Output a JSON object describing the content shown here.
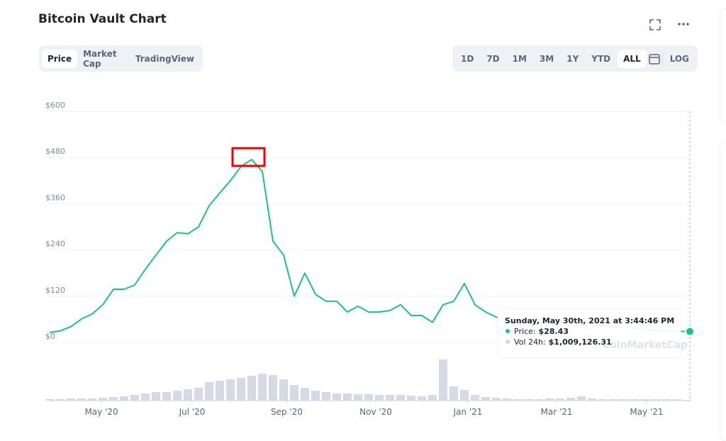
{
  "header": {
    "title": "Bitcoin Vault Chart",
    "tabs": [
      "Price",
      "Market Cap",
      "TradingView"
    ],
    "ranges": [
      "1D",
      "7D",
      "1M",
      "3M",
      "1Y",
      "YTD",
      "ALL"
    ],
    "log": "LOG"
  },
  "chart_data": {
    "type": "line",
    "series": [
      {
        "color": "#16c784",
        "values": [
          26,
          30,
          41,
          61,
          74,
          98,
          138,
          138,
          149,
          190,
          227,
          263,
          285,
          282,
          300,
          355,
          388,
          420,
          457,
          475,
          444,
          263,
          227,
          120,
          180,
          125,
          107,
          107,
          79,
          94,
          79,
          79,
          83,
          98,
          70,
          70,
          52,
          98,
          107,
          153,
          98,
          79,
          66,
          52,
          42,
          48,
          52,
          50,
          46,
          44,
          48,
          50,
          44,
          40,
          42,
          36,
          34,
          32,
          30,
          29,
          28.43
        ]
      }
    ],
    "xlim": [
      0,
      60
    ],
    "xticks": [
      {
        "value": 4.87,
        "label": "May '20"
      },
      {
        "value": 13.4,
        "label": "Jul '20"
      },
      {
        "value": 22.3,
        "label": "Sep '20"
      },
      {
        "value": 30.67,
        "label": "Nov '20"
      },
      {
        "value": 39.33,
        "label": "Jan '21"
      },
      {
        "value": 47.67,
        "label": "Mar '21"
      },
      {
        "value": 56.13,
        "label": "May '21"
      }
    ],
    "ylim": [
      0,
      600
    ],
    "yticks": [
      {
        "value": 0,
        "label": "$0"
      },
      {
        "value": 120,
        "label": "$120"
      },
      {
        "value": 240,
        "label": "$240"
      },
      {
        "value": 360,
        "label": "$360"
      },
      {
        "value": 480,
        "label": "$480"
      },
      {
        "value": 600,
        "label": "$600"
      }
    ],
    "grid": true,
    "volume": {
      "color": "#c3cad9",
      "values": [
        2,
        2,
        3,
        3,
        3,
        4,
        5,
        6,
        8,
        10,
        12,
        12,
        14,
        16,
        18,
        26,
        28,
        30,
        32,
        35,
        38,
        36,
        30,
        22,
        18,
        14,
        12,
        10,
        10,
        9,
        9,
        8,
        8,
        8,
        7,
        6,
        8,
        58,
        20,
        15,
        8,
        5,
        4,
        3,
        2,
        2,
        2,
        3,
        3,
        4,
        6,
        3,
        2,
        2,
        2,
        2,
        2,
        2,
        2,
        2,
        1
      ]
    }
  },
  "tooltip": {
    "date": "Sunday, May 30th, 2021 at 3:44:46 PM",
    "price_label": "Price:",
    "price": "$28.43",
    "volume_label": "Vol 24h:",
    "volume": "$1,009,126.31"
  },
  "watermark": "CoinMarketCap"
}
